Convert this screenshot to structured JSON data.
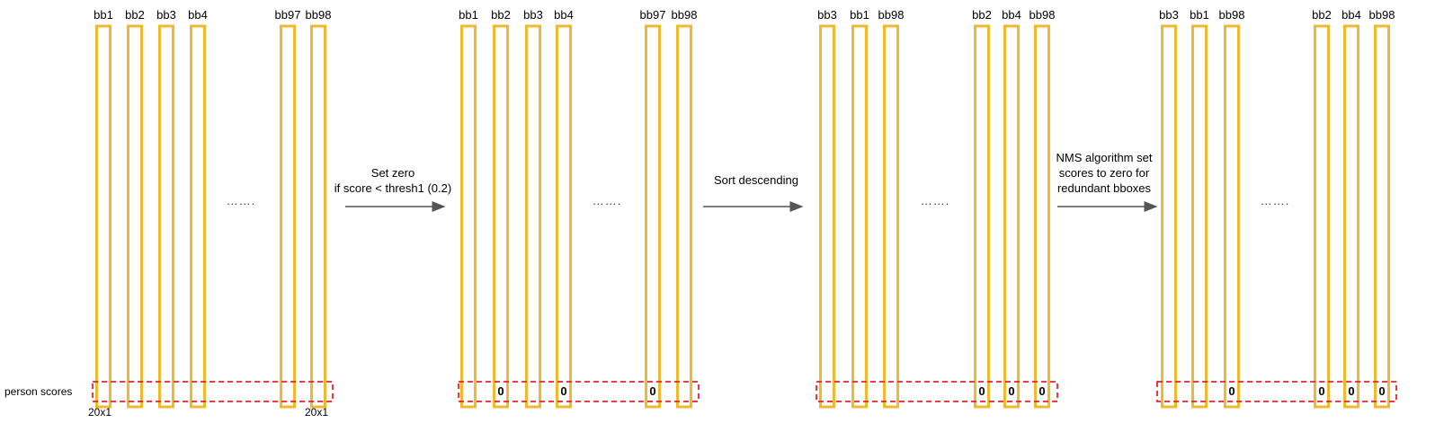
{
  "colors": {
    "column": "#f0b92e",
    "score_box": "#e8232a",
    "arrow": "#555555"
  },
  "panels": [
    {
      "columns": [
        {
          "label": "bb1",
          "score": ""
        },
        {
          "label": "bb2",
          "score": ""
        },
        {
          "label": "bb3",
          "score": ""
        },
        {
          "label": "bb4",
          "score": ""
        },
        {
          "label": "bb97",
          "score": ""
        },
        {
          "label": "bb98",
          "score": ""
        }
      ],
      "ellipsis": "……."
    },
    {
      "columns": [
        {
          "label": "bb1",
          "score": ""
        },
        {
          "label": "bb2",
          "score": "0"
        },
        {
          "label": "bb3",
          "score": ""
        },
        {
          "label": "bb4",
          "score": "0"
        },
        {
          "label": "bb97",
          "score": "0"
        },
        {
          "label": "bb98",
          "score": ""
        }
      ],
      "ellipsis": "……."
    },
    {
      "columns": [
        {
          "label": "bb3",
          "score": ""
        },
        {
          "label": "bb1",
          "score": ""
        },
        {
          "label": "bb98",
          "score": ""
        },
        {
          "label": "bb2",
          "score": "0"
        },
        {
          "label": "bb4",
          "score": "0"
        },
        {
          "label": "bb98",
          "score": "0"
        }
      ],
      "ellipsis": "……."
    },
    {
      "columns": [
        {
          "label": "bb3",
          "score": ""
        },
        {
          "label": "bb1",
          "score": ""
        },
        {
          "label": "bb98",
          "score": "0"
        },
        {
          "label": "bb2",
          "score": "0"
        },
        {
          "label": "bb4",
          "score": "0"
        },
        {
          "label": "bb98",
          "score": "0"
        }
      ],
      "ellipsis": "……."
    }
  ],
  "arrows": [
    {
      "lines": [
        "Set zero",
        "if score < thresh1 (0.2)"
      ]
    },
    {
      "lines": [
        "Sort descending"
      ]
    },
    {
      "lines": [
        "NMS algorithm set",
        "scores to zero for",
        "redundant bboxes"
      ]
    }
  ],
  "row_label": "person scores",
  "dim_labels": [
    "20x1",
    "20x1"
  ]
}
